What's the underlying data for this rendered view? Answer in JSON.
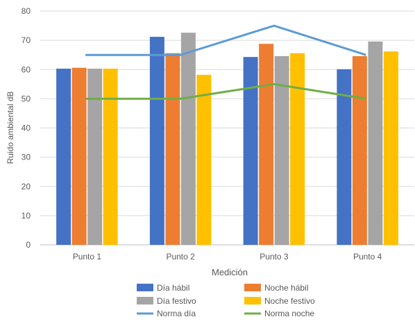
{
  "chart_data": {
    "type": "bar",
    "title": "",
    "xlabel": "Medición",
    "ylabel": "Ruido ambiental dB",
    "ylim": [
      0,
      80
    ],
    "yticks": [
      0,
      10,
      20,
      30,
      40,
      50,
      60,
      70,
      80
    ],
    "grid": true,
    "legend_position": "bottom",
    "categories": [
      "Punto 1",
      "Punto 2",
      "Punto 3",
      "Punto 4"
    ],
    "series": [
      {
        "name": "Día hábil",
        "kind": "bar",
        "color": "#4472C4",
        "values": [
          60.3,
          71.2,
          64.3,
          60.1
        ]
      },
      {
        "name": "Noche hábil",
        "kind": "bar",
        "color": "#ED7D31",
        "values": [
          60.6,
          65.6,
          68.8,
          64.6
        ]
      },
      {
        "name": "Día festivo",
        "kind": "bar",
        "color": "#A5A5A5",
        "values": [
          60.3,
          72.6,
          64.6,
          69.6
        ]
      },
      {
        "name": "Noche festivo",
        "kind": "bar",
        "color": "#FFC000",
        "values": [
          60.3,
          58.2,
          65.6,
          66.2
        ]
      },
      {
        "name": "Norma día",
        "kind": "line",
        "color": "#5B9BD5",
        "values": [
          65,
          65,
          75,
          65
        ]
      },
      {
        "name": "Norma noche",
        "kind": "line",
        "color": "#70AD47",
        "values": [
          50,
          50,
          55,
          50
        ]
      }
    ]
  }
}
